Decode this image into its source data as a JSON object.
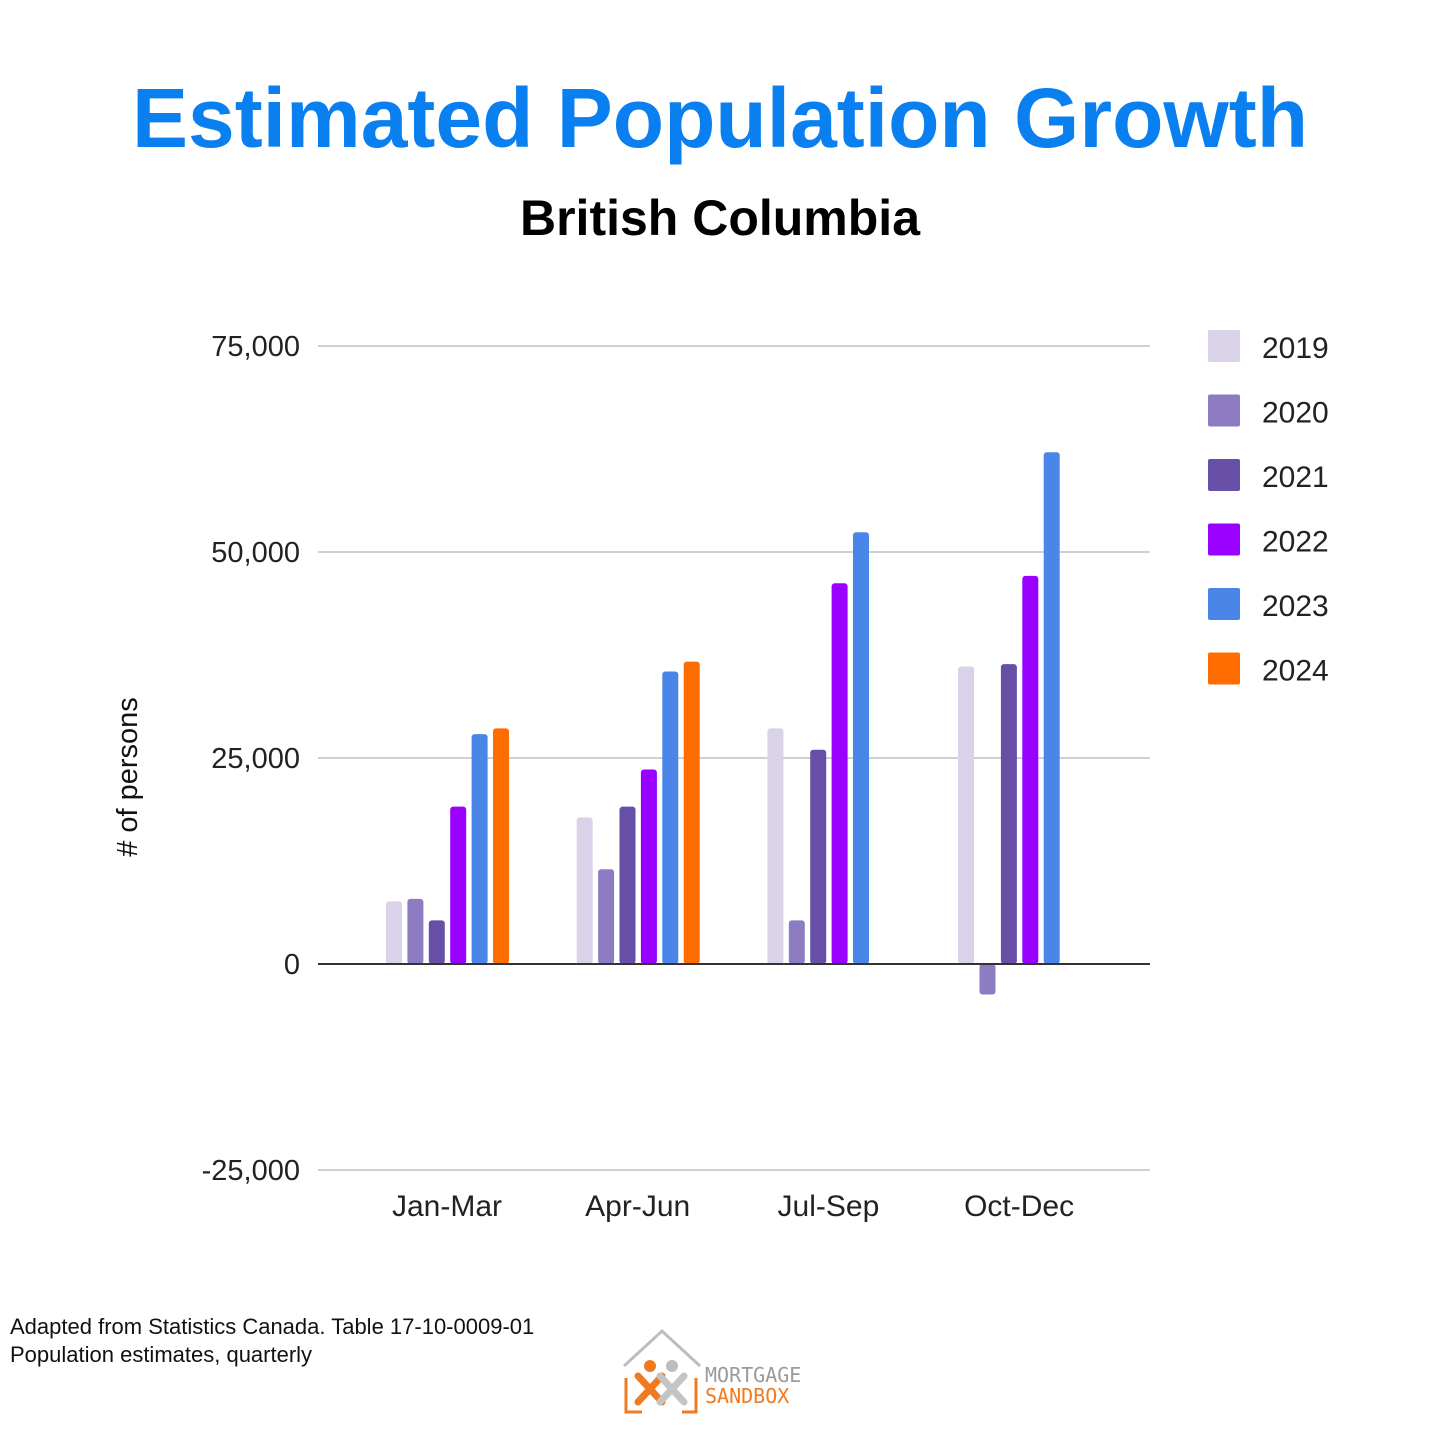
{
  "header": {
    "title": "Estimated Population Growth",
    "subtitle": "British Columbia"
  },
  "footer": {
    "source_line1": "Adapted from Statistics Canada. Table 17-10-0009-01",
    "source_line2": "Population estimates, quarterly",
    "logo_word1": "MORTGAGE",
    "logo_word2": "SANDBOX"
  },
  "colors": {
    "title": "#0a7ff0",
    "grid": "#d0d0d0",
    "zero_line": "#333333"
  },
  "chart_data": {
    "type": "bar",
    "title": "Estimated Population Growth",
    "subtitle": "British Columbia",
    "xlabel": "",
    "ylabel": "# of persons",
    "categories": [
      "Jan-Mar",
      "Apr-Jun",
      "Jul-Sep",
      "Oct-Dec"
    ],
    "ylim": [
      -25000,
      75000
    ],
    "yticks": [
      -25000,
      0,
      25000,
      50000,
      75000
    ],
    "ytick_labels": [
      "-25,000",
      "0",
      "25,000",
      "50,000",
      "75,000"
    ],
    "grid": true,
    "legend_position": "right",
    "series": [
      {
        "name": "2019",
        "color": "#d9d2e9",
        "values": [
          7600,
          17800,
          28600,
          36100
        ]
      },
      {
        "name": "2020",
        "color": "#8e7cc3",
        "values": [
          7900,
          11500,
          5300,
          -3700
        ]
      },
      {
        "name": "2021",
        "color": "#674ea7",
        "values": [
          5300,
          19100,
          26000,
          36400
        ]
      },
      {
        "name": "2022",
        "color": "#9900ff",
        "values": [
          19100,
          23600,
          46200,
          47100
        ]
      },
      {
        "name": "2023",
        "color": "#4a86e8",
        "values": [
          27900,
          35500,
          52400,
          62100
        ]
      },
      {
        "name": "2024",
        "color": "#ff6d01",
        "values": [
          28600,
          36700,
          null,
          null
        ]
      }
    ]
  }
}
